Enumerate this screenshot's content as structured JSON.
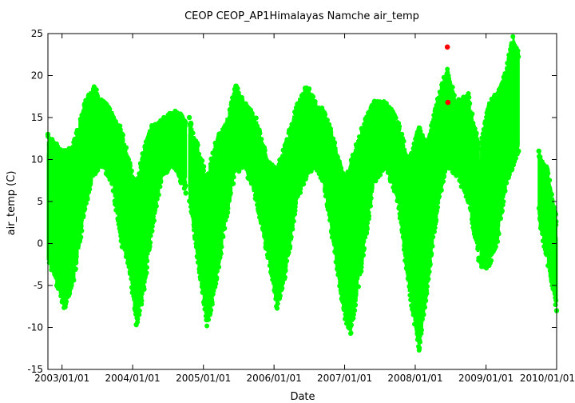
{
  "chart_data": {
    "type": "scatter",
    "title": "CEOP CEOP_AP1Himalayas Namche  air_temp",
    "xlabel": "Date",
    "ylabel": "air_temp (C)",
    "xlim": [
      "2002-10-20",
      "2010-01-01"
    ],
    "ylim": [
      -15,
      25
    ],
    "x_ticks": [
      "2003/01/01",
      "2004/01/01",
      "2005/01/01",
      "2006/01/01",
      "2007/01/01",
      "2008/01/01",
      "2009/01/01",
      "2010/01/01"
    ],
    "y_ticks": [
      25,
      20,
      15,
      10,
      5,
      0,
      -5,
      -10,
      -15
    ],
    "grid": false,
    "legend": "none",
    "colors": {
      "main": "#00ff00",
      "flagged": "#ff0000"
    },
    "series": [
      {
        "color": "#00ff00",
        "segments": [
          {
            "start": "2002-10-20",
            "end": "2004-10-02"
          },
          {
            "start": "2004-10-20",
            "end": "2008-11-24"
          },
          {
            "start": "2008-12-05",
            "end": "2009-06-18"
          },
          {
            "start": "2009-10-01",
            "end": "2010-01-01"
          }
        ],
        "envelope": [
          {
            "date": "2002-10-20",
            "min": -2,
            "max": 13
          },
          {
            "date": "2003-01-15",
            "min": -8,
            "max": 11
          },
          {
            "date": "2003-03-01",
            "min": -5,
            "max": 12
          },
          {
            "date": "2003-05-01",
            "min": 4,
            "max": 17
          },
          {
            "date": "2003-06-15",
            "min": 8,
            "max": 19
          },
          {
            "date": "2003-08-01",
            "min": 9,
            "max": 17
          },
          {
            "date": "2003-09-15",
            "min": 7,
            "max": 16
          },
          {
            "date": "2003-11-01",
            "min": 0,
            "max": 14
          },
          {
            "date": "2003-12-15",
            "min": -3,
            "max": 10
          },
          {
            "date": "2004-01-20",
            "min": -10,
            "max": 7
          },
          {
            "date": "2004-03-01",
            "min": -6,
            "max": 12
          },
          {
            "date": "2004-04-01",
            "min": 0,
            "max": 14
          },
          {
            "date": "2004-06-01",
            "min": 8,
            "max": 15
          },
          {
            "date": "2004-08-01",
            "min": 9,
            "max": 16
          },
          {
            "date": "2004-10-02",
            "min": 6,
            "max": 15
          },
          {
            "date": "2004-10-20",
            "min": 5,
            "max": 15
          },
          {
            "date": "2004-12-01",
            "min": -2,
            "max": 12
          },
          {
            "date": "2005-01-20",
            "min": -10,
            "max": 8
          },
          {
            "date": "2005-03-01",
            "min": -6,
            "max": 12
          },
          {
            "date": "2005-05-01",
            "min": 3,
            "max": 15
          },
          {
            "date": "2005-06-15",
            "min": 8,
            "max": 19
          },
          {
            "date": "2005-08-01",
            "min": 9,
            "max": 17
          },
          {
            "date": "2005-10-01",
            "min": 5,
            "max": 15
          },
          {
            "date": "2005-12-01",
            "min": -2,
            "max": 10
          },
          {
            "date": "2006-01-15",
            "min": -8,
            "max": 9
          },
          {
            "date": "2006-03-01",
            "min": -4,
            "max": 12
          },
          {
            "date": "2006-05-01",
            "min": 5,
            "max": 17
          },
          {
            "date": "2006-06-20",
            "min": 8,
            "max": 19
          },
          {
            "date": "2006-08-01",
            "min": 9,
            "max": 17
          },
          {
            "date": "2006-09-15",
            "min": 7,
            "max": 16
          },
          {
            "date": "2006-11-01",
            "min": 0,
            "max": 13
          },
          {
            "date": "2007-01-01",
            "min": -9,
            "max": 8
          },
          {
            "date": "2007-02-01",
            "min": -11,
            "max": 10
          },
          {
            "date": "2007-04-01",
            "min": -3,
            "max": 14
          },
          {
            "date": "2007-06-01",
            "min": 7,
            "max": 17
          },
          {
            "date": "2007-08-01",
            "min": 9,
            "max": 17
          },
          {
            "date": "2007-10-01",
            "min": 5,
            "max": 15
          },
          {
            "date": "2007-12-01",
            "min": -6,
            "max": 10
          },
          {
            "date": "2008-01-20",
            "min": -13,
            "max": 14
          },
          {
            "date": "2008-03-01",
            "min": -6,
            "max": 12
          },
          {
            "date": "2008-05-01",
            "min": 5,
            "max": 18
          },
          {
            "date": "2008-06-15",
            "min": 9,
            "max": 21
          },
          {
            "date": "2008-08-01",
            "min": 8,
            "max": 17
          },
          {
            "date": "2008-10-01",
            "min": 5,
            "max": 18
          },
          {
            "date": "2008-11-24",
            "min": -2,
            "max": 12
          },
          {
            "date": "2008-12-05",
            "min": -3,
            "max": 12
          },
          {
            "date": "2009-01-15",
            "min": -3,
            "max": 17
          },
          {
            "date": "2009-03-01",
            "min": 0,
            "max": 18
          },
          {
            "date": "2009-04-15",
            "min": 7,
            "max": 21
          },
          {
            "date": "2009-05-20",
            "min": 9,
            "max": 25
          },
          {
            "date": "2009-06-18",
            "min": 11,
            "max": 23
          },
          {
            "date": "2009-10-01",
            "min": 3,
            "max": 11
          },
          {
            "date": "2009-11-15",
            "min": -3,
            "max": 9
          },
          {
            "date": "2010-01-01",
            "min": -8,
            "max": 3
          }
        ]
      },
      {
        "color": "#ff0000",
        "points": [
          {
            "x": "2008-06-15",
            "y": 23.4
          },
          {
            "x": "2008-06-18",
            "y": 16.8
          }
        ]
      }
    ]
  }
}
